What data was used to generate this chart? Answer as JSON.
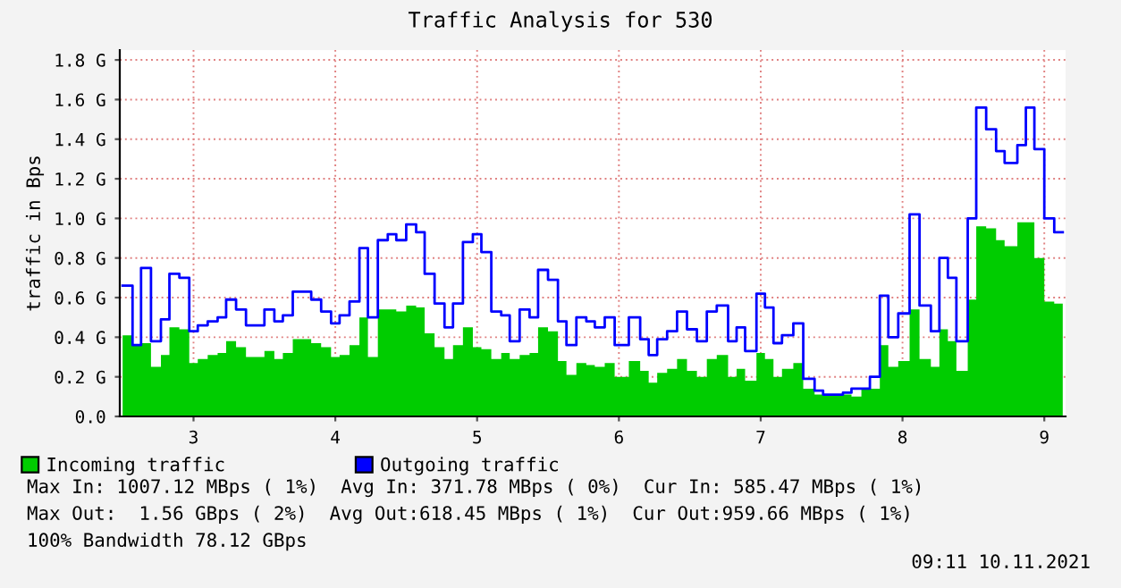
{
  "chart_data": {
    "type": "step",
    "title": "Traffic Analysis for 530",
    "ylabel": "traffic in Bps",
    "x": [
      2.5,
      2.57,
      2.63,
      2.7,
      2.77,
      2.83,
      2.9,
      2.97,
      3.03,
      3.1,
      3.17,
      3.23,
      3.3,
      3.37,
      3.43,
      3.5,
      3.57,
      3.63,
      3.7,
      3.77,
      3.83,
      3.9,
      3.97,
      4.03,
      4.1,
      4.17,
      4.23,
      4.3,
      4.37,
      4.43,
      4.5,
      4.57,
      4.63,
      4.7,
      4.77,
      4.83,
      4.9,
      4.97,
      5.03,
      5.1,
      5.17,
      5.23,
      5.3,
      5.37,
      5.43,
      5.5,
      5.57,
      5.63,
      5.7,
      5.77,
      5.83,
      5.9,
      5.97,
      6.07,
      6.15,
      6.21,
      6.27,
      6.34,
      6.41,
      6.48,
      6.55,
      6.62,
      6.69,
      6.77,
      6.83,
      6.89,
      6.97,
      7.03,
      7.09,
      7.15,
      7.23,
      7.3,
      7.38,
      7.44,
      7.51,
      7.58,
      7.64,
      7.71,
      7.77,
      7.84,
      7.9,
      7.97,
      8.05,
      8.12,
      8.2,
      8.26,
      8.32,
      8.38,
      8.46,
      8.52,
      8.59,
      8.66,
      8.72,
      8.81,
      8.87,
      8.93,
      9.0,
      9.07,
      9.13
    ],
    "series": [
      {
        "name": "Incoming traffic",
        "type": "area",
        "color": "#00cc00",
        "values": [
          0.41,
          0.36,
          0.37,
          0.25,
          0.31,
          0.45,
          0.44,
          0.27,
          0.29,
          0.31,
          0.32,
          0.38,
          0.35,
          0.3,
          0.3,
          0.33,
          0.29,
          0.32,
          0.39,
          0.39,
          0.37,
          0.35,
          0.3,
          0.31,
          0.36,
          0.5,
          0.3,
          0.54,
          0.54,
          0.53,
          0.56,
          0.55,
          0.42,
          0.35,
          0.29,
          0.36,
          0.45,
          0.35,
          0.34,
          0.29,
          0.32,
          0.29,
          0.31,
          0.32,
          0.45,
          0.43,
          0.28,
          0.21,
          0.27,
          0.26,
          0.25,
          0.27,
          0.2,
          0.28,
          0.23,
          0.17,
          0.22,
          0.24,
          0.29,
          0.23,
          0.2,
          0.29,
          0.31,
          0.2,
          0.24,
          0.18,
          0.32,
          0.29,
          0.2,
          0.24,
          0.27,
          0.14,
          0.11,
          0.11,
          0.11,
          0.11,
          0.1,
          0.14,
          0.14,
          0.36,
          0.25,
          0.28,
          0.54,
          0.29,
          0.25,
          0.44,
          0.38,
          0.23,
          0.59,
          0.96,
          0.95,
          0.89,
          0.86,
          0.98,
          0.98,
          0.8,
          0.58,
          0.57,
          0.57
        ]
      },
      {
        "name": "Outgoing traffic",
        "color": "#0000ff",
        "values": [
          0.66,
          0.36,
          0.75,
          0.38,
          0.49,
          0.72,
          0.7,
          0.43,
          0.46,
          0.48,
          0.5,
          0.59,
          0.54,
          0.46,
          0.46,
          0.54,
          0.48,
          0.51,
          0.63,
          0.63,
          0.59,
          0.53,
          0.47,
          0.51,
          0.58,
          0.85,
          0.5,
          0.89,
          0.92,
          0.89,
          0.97,
          0.93,
          0.72,
          0.57,
          0.45,
          0.57,
          0.88,
          0.92,
          0.83,
          0.53,
          0.51,
          0.38,
          0.54,
          0.5,
          0.74,
          0.69,
          0.48,
          0.36,
          0.5,
          0.48,
          0.45,
          0.5,
          0.36,
          0.5,
          0.39,
          0.31,
          0.39,
          0.43,
          0.53,
          0.44,
          0.38,
          0.53,
          0.56,
          0.38,
          0.45,
          0.33,
          0.62,
          0.55,
          0.37,
          0.41,
          0.47,
          0.19,
          0.13,
          0.11,
          0.11,
          0.12,
          0.14,
          0.14,
          0.2,
          0.61,
          0.4,
          0.52,
          1.02,
          0.56,
          0.43,
          0.8,
          0.7,
          0.38,
          1.0,
          1.56,
          1.45,
          1.34,
          1.28,
          1.37,
          1.56,
          1.35,
          1.0,
          0.93,
          0.93
        ]
      }
    ],
    "xlim": [
      2.48,
      9.15
    ],
    "ylim": [
      0,
      1.85
    ],
    "xticks": [
      3,
      4,
      5,
      6,
      7,
      8,
      9
    ],
    "yticks": [
      {
        "value": 0,
        "label": "0.0"
      },
      {
        "value": 0.2,
        "label": "0.2 G"
      },
      {
        "value": 0.4,
        "label": "0.4 G"
      },
      {
        "value": 0.6,
        "label": "0.6 G"
      },
      {
        "value": 0.8,
        "label": "0.8 G"
      },
      {
        "value": 1.0,
        "label": "1.0 G"
      },
      {
        "value": 1.2,
        "label": "1.2 G"
      },
      {
        "value": 1.4,
        "label": "1.4 G"
      },
      {
        "value": 1.6,
        "label": "1.6 G"
      },
      {
        "value": 1.8,
        "label": "1.8 G"
      }
    ],
    "grid": true,
    "legend": "bottom",
    "annotations": [
      "Max In: 1007.12 MBps ( 1%)  Avg In: 371.78 MBps ( 0%)  Cur In: 585.47 MBps ( 1%)",
      "Max Out:  1.56 GBps ( 2%)  Avg Out:618.45 MBps ( 1%)  Cur Out:959.66 MBps ( 1%)",
      "100% Bandwidth 78.12 GBps",
      "09:11 10.11.2021"
    ]
  }
}
